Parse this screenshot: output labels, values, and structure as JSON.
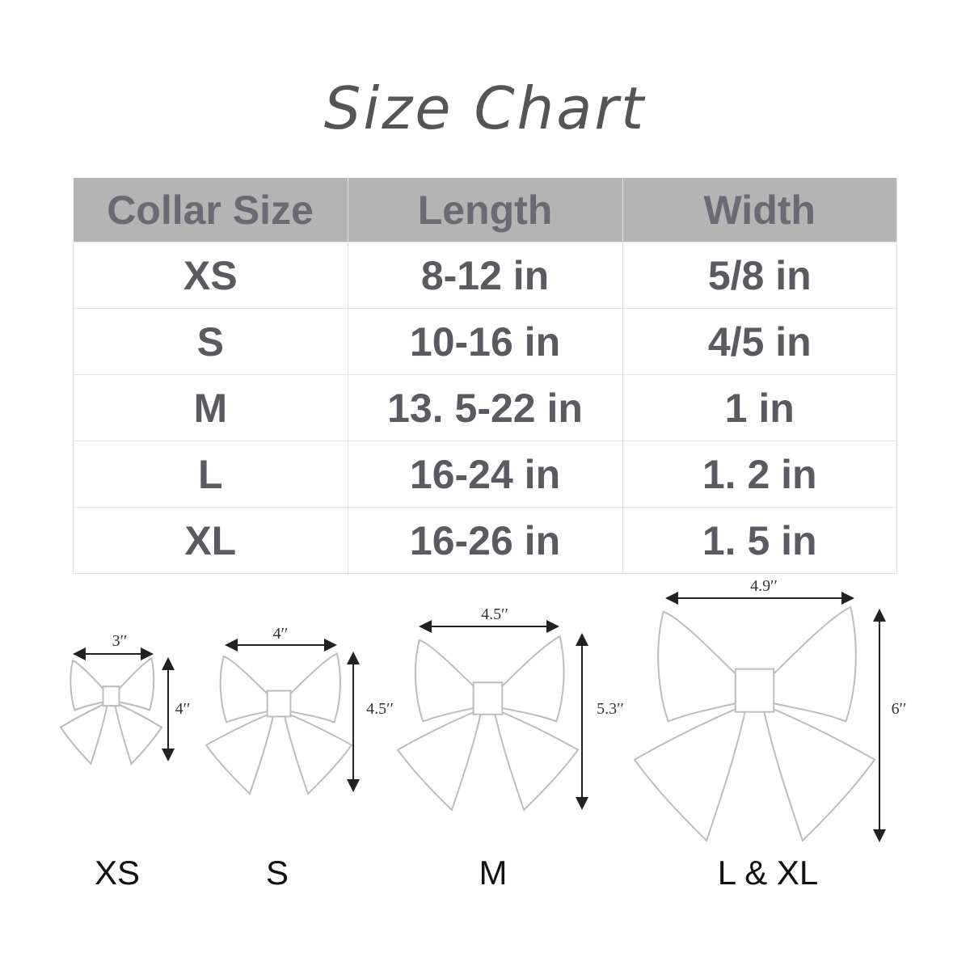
{
  "title": "Size Chart",
  "table": {
    "headers": [
      "Collar Size",
      "Length",
      "Width"
    ],
    "rows": [
      [
        "XS",
        "8-12 in",
        "5/8 in"
      ],
      [
        "S",
        "10-16 in",
        "4/5 in"
      ],
      [
        "M",
        "13. 5-22 in",
        "1 in"
      ],
      [
        "L",
        "16-24 in",
        "1. 2 in"
      ],
      [
        "XL",
        "16-26 in",
        "1. 5 in"
      ]
    ]
  },
  "bows": [
    {
      "caption": "XS",
      "width_label": "3′′",
      "height_label": "4′′"
    },
    {
      "caption": "S",
      "width_label": "4′′",
      "height_label": "4.5′′"
    },
    {
      "caption": "M",
      "width_label": "4.5′′",
      "height_label": "5.3′′"
    },
    {
      "caption": "L & XL",
      "width_label": "4.9′′",
      "height_label": "6′′"
    }
  ],
  "colors": {
    "header_bg": "#b4b4b4",
    "text": "#5a5a60"
  }
}
